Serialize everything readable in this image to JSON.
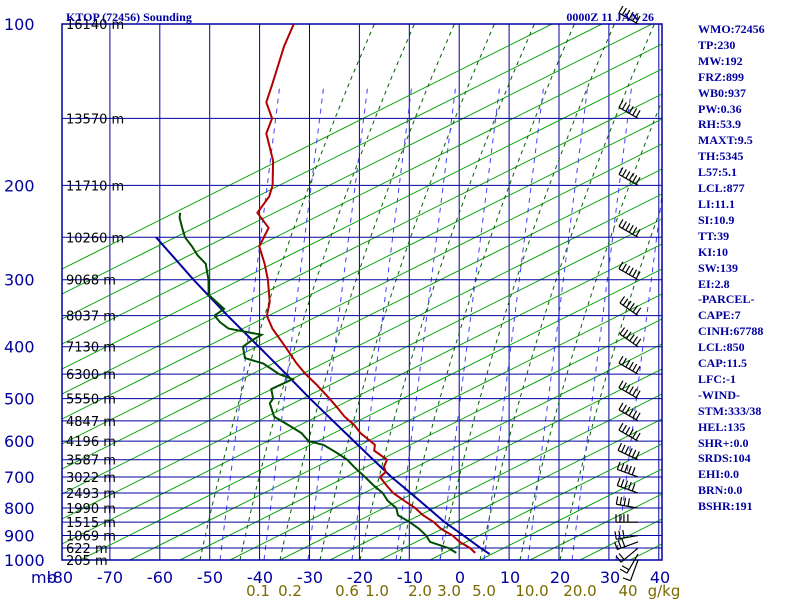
{
  "header": {
    "station": "KTOP (72456) Sounding",
    "time": "0000Z 11 JAN 26"
  },
  "colors": {
    "axis": "#0000a0",
    "isotherm": "#0000a0",
    "dry_adiabat": "#00a000",
    "moist_adiabat": "#006000",
    "mixing_ratio": "#4040ff",
    "temperature": "#b00000",
    "dewpoint": "#004d00",
    "parcel": "#0000a0",
    "wind_barb": "#000000",
    "mixing_ratio_label": "#7a6a00"
  },
  "chart_data": {
    "type": "skew-t log-p sounding",
    "title": "KTOP (72456) Sounding",
    "subtitle": "0000Z 11 JAN 26",
    "pressure_axis": {
      "ticks": [
        100,
        200,
        300,
        400,
        500,
        600,
        700,
        800,
        900,
        1000
      ],
      "unit_label": "mb"
    },
    "temperature_axis": {
      "ticks": [
        "-80",
        "-70",
        "-60",
        "-50",
        "-40",
        "-30",
        "-20",
        "-10",
        "0",
        "10",
        "20",
        "30",
        "40"
      ]
    },
    "height_labels": [
      {
        "p": 100,
        "label": "16140 m"
      },
      {
        "p": 150,
        "label": "13570 m"
      },
      {
        "p": 200,
        "label": "11710 m"
      },
      {
        "p": 250,
        "label": "10260 m"
      },
      {
        "p": 300,
        "label": "9068 m"
      },
      {
        "p": 350,
        "label": "8037 m"
      },
      {
        "p": 400,
        "label": "7130 m"
      },
      {
        "p": 450,
        "label": "6300 m"
      },
      {
        "p": 500,
        "label": "5550 m"
      },
      {
        "p": 550,
        "label": "4847 m"
      },
      {
        "p": 600,
        "label": "4196 m"
      },
      {
        "p": 650,
        "label": "3587 m"
      },
      {
        "p": 700,
        "label": "3022 m"
      },
      {
        "p": 750,
        "label": "2493 m"
      },
      {
        "p": 800,
        "label": "1990 m"
      },
      {
        "p": 850,
        "label": "1515 m"
      },
      {
        "p": 900,
        "label": "1069 m"
      },
      {
        "p": 950,
        "label": "622 m"
      },
      {
        "p": 1000,
        "label": "205 m"
      }
    ],
    "mixing_ratio_labels": [
      "0.1",
      "0.2",
      "0.6",
      "1.0",
      "2.0",
      "3.0",
      "5.0",
      "10.0",
      "20.0",
      "40",
      "g/kg"
    ],
    "mixing_ratio_values": [
      0.1,
      0.2,
      0.6,
      1.0,
      2.0,
      3.0,
      5.0,
      10.0,
      20.0,
      40.0
    ],
    "temperature": {
      "p": [
        970,
        950,
        925,
        900,
        875,
        850,
        825,
        800,
        775,
        750,
        725,
        700,
        685,
        670,
        650,
        625,
        610,
        600,
        580,
        560,
        540,
        520,
        500,
        470,
        450,
        430,
        400,
        370,
        350,
        330,
        300,
        280,
        260,
        240,
        225,
        210,
        200,
        180,
        160,
        150,
        140,
        130,
        110,
        100
      ],
      "t": [
        2.5,
        1.1,
        -1.5,
        -3.4,
        -6.2,
        -8.2,
        -10.9,
        -13.0,
        -15.8,
        -18.6,
        -20.6,
        -22.5,
        -21.7,
        -22.5,
        -22.4,
        -25.7,
        -26.0,
        -27.2,
        -29.8,
        -31.7,
        -34.3,
        -36.4,
        -38.7,
        -42.5,
        -45.4,
        -48.0,
        -51.6,
        -55.6,
        -57.7,
        -58.2,
        -60.3,
        -62.2,
        -64.6,
        -64.2,
        -67.6,
        -66.5,
        -66.7,
        -68.5,
        -72.0,
        -72.0,
        -74.4,
        -74.6,
        -75.2,
        -75.0
      ]
    },
    "dewpoint": {
      "p": [
        970,
        950,
        925,
        900,
        875,
        850,
        825,
        800,
        775,
        750,
        725,
        700,
        685,
        670,
        650,
        630,
        610,
        600,
        580,
        560,
        540,
        510,
        500,
        480,
        460,
        450,
        430,
        420,
        400,
        390,
        380,
        370,
        360,
        350,
        340,
        320,
        300,
        280,
        270,
        260,
        250,
        240,
        230,
        225
      ],
      "t": [
        -1.3,
        -3.2,
        -7.4,
        -8.7,
        -10.6,
        -13.0,
        -15.9,
        -16.8,
        -19.1,
        -20.7,
        -23.2,
        -25.5,
        -27.0,
        -28.5,
        -30.4,
        -33.2,
        -36.3,
        -39.6,
        -41.6,
        -44.9,
        -48.4,
        -50.3,
        -50.0,
        -51.1,
        -47.6,
        -50.7,
        -54.7,
        -58.8,
        -60.1,
        -58.9,
        -57.3,
        -64.4,
        -66.6,
        -68.2,
        -66.8,
        -71.0,
        -72.2,
        -74.0,
        -76.3,
        -78.1,
        -80.2,
        -81.5,
        -82.8,
        -83.1
      ]
    },
    "parcel": {
      "p": [
        975,
        950,
        900,
        850,
        800,
        750,
        700,
        650,
        600,
        550,
        500,
        450,
        400,
        350,
        300,
        250
      ],
      "t": [
        5.5,
        3.2,
        -1.2,
        -6.0,
        -10.4,
        -15.1,
        -20.2,
        -25.2,
        -30.5,
        -36.3,
        -42.6,
        -49.3,
        -56.9,
        -65.6,
        -75.2,
        -86.0
      ]
    },
    "wind_profile": {
      "p": [
        1000,
        975,
        950,
        925,
        900,
        850,
        800,
        750,
        700,
        650,
        600,
        550,
        500,
        450,
        400,
        350,
        300,
        250,
        200,
        150,
        100
      ],
      "direction_deg": [
        200,
        210,
        230,
        250,
        260,
        270,
        280,
        290,
        290,
        295,
        300,
        300,
        300,
        300,
        305,
        305,
        300,
        300,
        300,
        300,
        300
      ],
      "speed_kt": [
        15,
        20,
        25,
        30,
        35,
        40,
        45,
        50,
        55,
        60,
        65,
        70,
        75,
        80,
        85,
        90,
        95,
        100,
        95,
        90,
        85
      ]
    }
  },
  "indices": [
    "WMO:72456",
    "TP:230",
    "MW:192",
    "FRZ:899",
    "WB0:937",
    "PW:0.36",
    "RH:53.9",
    "MAXT:9.5",
    "TH:5345",
    "L57:5.1",
    "LCL:877",
    "LI:11.1",
    "SI:10.9",
    "TT:39",
    "KI:10",
    "SW:139",
    "EI:2.8",
    "-PARCEL-",
    "CAPE:7",
    "CINH:67788",
    "LCL:850",
    "CAP:11.5",
    "LFC:-1",
    "-WIND-",
    "STM:333/38",
    "HEL:135",
    "SHR+:0.0",
    "SRDS:104",
    "EHI:0.0",
    "BRN:0.0",
    "BSHR:191"
  ]
}
